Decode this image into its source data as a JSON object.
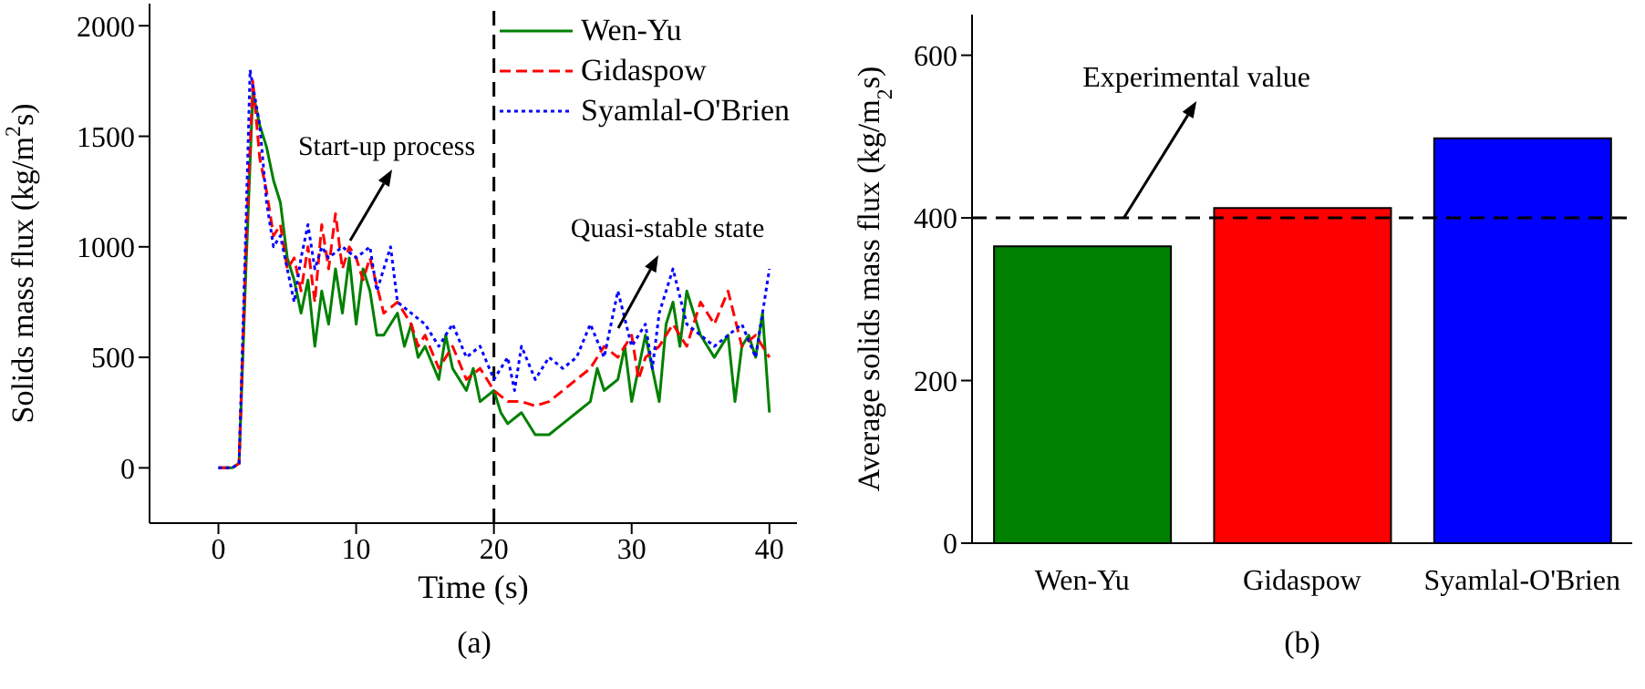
{
  "chart_data": [
    {
      "type": "line",
      "xlabel": "Time (s)",
      "ylabel": "Solids mass flux (kg/m$^{2}$s)",
      "xlim": [
        -5,
        42
      ],
      "xticks": [
        0,
        10,
        20,
        30,
        40
      ],
      "ylim": [
        -250,
        2100
      ],
      "yticks": [
        0,
        500,
        1000,
        1500,
        2000
      ],
      "grid": false,
      "legend": "top right",
      "marker": "none",
      "ref_lines": [
        {
          "axis": "x",
          "value": 20,
          "color": "#000000",
          "line_style": "dashed"
        }
      ],
      "annotations": [
        "Start-up process",
        "Quasi-stable state",
        "(a)"
      ],
      "series": [
        {
          "name": "Wen-Yu",
          "color": "#008000",
          "line_style": "solid",
          "x": [
            0,
            1,
            1.5,
            2,
            2.5,
            3,
            3.5,
            4,
            4.5,
            5,
            5.5,
            6,
            6.5,
            7,
            7.5,
            8,
            8.5,
            9,
            9.5,
            10,
            10.5,
            11,
            11.5,
            12,
            13,
            13.5,
            14,
            14.5,
            15,
            16,
            16.5,
            17,
            18,
            18.5,
            19,
            20,
            20.5,
            21,
            22,
            23,
            24,
            25,
            26,
            27,
            27.5,
            28,
            29,
            29.5,
            30,
            30.5,
            31,
            32,
            32.5,
            33,
            33.5,
            34,
            35,
            36,
            37,
            37.5,
            38,
            38.5,
            39,
            39.5,
            40
          ],
          "values": [
            0,
            0,
            20,
            900,
            1700,
            1550,
            1450,
            1300,
            1200,
            950,
            850,
            700,
            850,
            550,
            800,
            650,
            900,
            700,
            950,
            650,
            900,
            800,
            600,
            600,
            700,
            550,
            650,
            500,
            550,
            400,
            600,
            450,
            350,
            450,
            300,
            350,
            250,
            200,
            250,
            150,
            150,
            200,
            250,
            300,
            450,
            350,
            400,
            550,
            300,
            450,
            600,
            300,
            650,
            750,
            550,
            800,
            600,
            500,
            600,
            300,
            550,
            600,
            500,
            700,
            250
          ]
        },
        {
          "name": "Gidaspow",
          "color": "#ff0000",
          "line_style": "dashed",
          "x": [
            0,
            1,
            1.5,
            2,
            2.5,
            3,
            3.5,
            4,
            4.5,
            5,
            5.5,
            6,
            6.5,
            7,
            7.5,
            8,
            8.5,
            9,
            9.5,
            10,
            10.5,
            11,
            12,
            13,
            14,
            14.5,
            15,
            16,
            17,
            18,
            19,
            20,
            21,
            22,
            23,
            24,
            25,
            26,
            27,
            28,
            29,
            30,
            30.5,
            31,
            32,
            33,
            34,
            35,
            36,
            37,
            38,
            39,
            40
          ],
          "values": [
            0,
            0,
            20,
            1000,
            1750,
            1400,
            1250,
            1050,
            1100,
            900,
            950,
            800,
            1000,
            750,
            1100,
            900,
            1150,
            900,
            1000,
            950,
            850,
            950,
            700,
            750,
            650,
            550,
            600,
            450,
            550,
            400,
            450,
            350,
            300,
            300,
            280,
            300,
            350,
            400,
            450,
            550,
            500,
            600,
            400,
            500,
            550,
            650,
            550,
            750,
            650,
            800,
            550,
            600,
            500
          ]
        },
        {
          "name": "Syamlal-O'Brien",
          "color": "#0000ff",
          "line_style": "dotted",
          "x": [
            0,
            1,
            1.5,
            2,
            2.3,
            3,
            3.5,
            4,
            4.5,
            5,
            5.5,
            6,
            6.5,
            7,
            7.5,
            8,
            9,
            10,
            11,
            11.5,
            12,
            12.5,
            13,
            14,
            15,
            16,
            17,
            18,
            19,
            20,
            21,
            21.5,
            22,
            23,
            24,
            25,
            26,
            27,
            28,
            29,
            30,
            31,
            31.5,
            32,
            33,
            34,
            35,
            36,
            37,
            38,
            39,
            40
          ],
          "values": [
            0,
            0,
            20,
            1100,
            1800,
            1550,
            1200,
            1000,
            1050,
            900,
            750,
            950,
            1100,
            900,
            1000,
            950,
            1000,
            950,
            1000,
            800,
            900,
            1000,
            750,
            700,
            650,
            550,
            650,
            500,
            550,
            400,
            500,
            350,
            550,
            400,
            500,
            450,
            500,
            650,
            500,
            800,
            550,
            650,
            450,
            700,
            900,
            650,
            600,
            550,
            600,
            650,
            500,
            900
          ]
        }
      ]
    },
    {
      "type": "bar",
      "ylabel": "Average solids mass flux (kg/m$_{2}$s)",
      "categories": [
        "Wen-Yu",
        "Gidaspow",
        "Syamlal-O'Brien"
      ],
      "values": [
        365,
        412,
        498
      ],
      "colors": [
        "#008000",
        "#ff0000",
        "#0000ff"
      ],
      "ylim": [
        0,
        650
      ],
      "yticks": [
        0,
        200,
        400,
        600
      ],
      "grid": false,
      "ref_lines": [
        {
          "axis": "y",
          "value": 400,
          "label": "Experimental value",
          "color": "#000000",
          "line_style": "dashed"
        }
      ],
      "annotations": [
        "(b)"
      ]
    }
  ]
}
